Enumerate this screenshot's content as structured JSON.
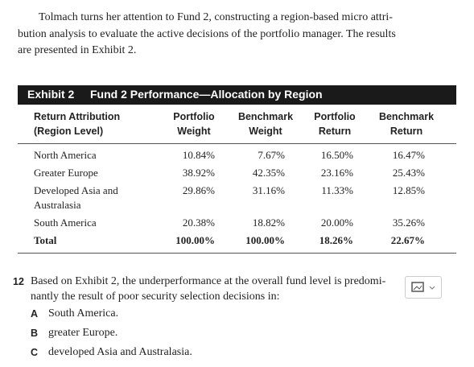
{
  "intro": {
    "lines": [
      "Tolmach turns her attention to Fund 2, constructing a region-based micro attri-",
      "bution analysis to evaluate the active decisions of the portfolio manager. The results",
      "are presented in Exhibit 2."
    ]
  },
  "exhibit": {
    "label": "Exhibit 2",
    "title": "Fund 2 Performance—Allocation by Region",
    "columns": [
      [
        "Return Attribution",
        "(Region Level)"
      ],
      [
        "Portfolio",
        "Weight"
      ],
      [
        "Benchmark",
        "Weight"
      ],
      [
        "Portfolio",
        "Return"
      ],
      [
        "Benchmark",
        "Return"
      ]
    ],
    "rows": [
      {
        "label": [
          "North America"
        ],
        "values": [
          "10.84%",
          "7.67%",
          "16.50%",
          "16.47%"
        ]
      },
      {
        "label": [
          "Greater Europe"
        ],
        "values": [
          "38.92%",
          "42.35%",
          "23.16%",
          "25.43%"
        ]
      },
      {
        "label": [
          "Developed Asia and",
          "Australasia"
        ],
        "values": [
          "29.86%",
          "31.16%",
          "11.33%",
          "12.85%"
        ]
      },
      {
        "label": [
          "South America"
        ],
        "values": [
          "20.38%",
          "18.82%",
          "20.00%",
          "35.26%"
        ]
      },
      {
        "label": [
          "Total"
        ],
        "values": [
          "100.00%",
          "100.00%",
          "18.26%",
          "22.67%"
        ]
      }
    ]
  },
  "question": {
    "number": "12",
    "lines": [
      "Based on Exhibit 2, the underperformance at the overall fund level is predomi-",
      "nantly the result of poor security selection decisions in:"
    ],
    "options": [
      {
        "letter": "A",
        "text": "South America."
      },
      {
        "letter": "B",
        "text": "greater Europe."
      },
      {
        "letter": "C",
        "text": "developed Asia and Australasia."
      }
    ]
  }
}
